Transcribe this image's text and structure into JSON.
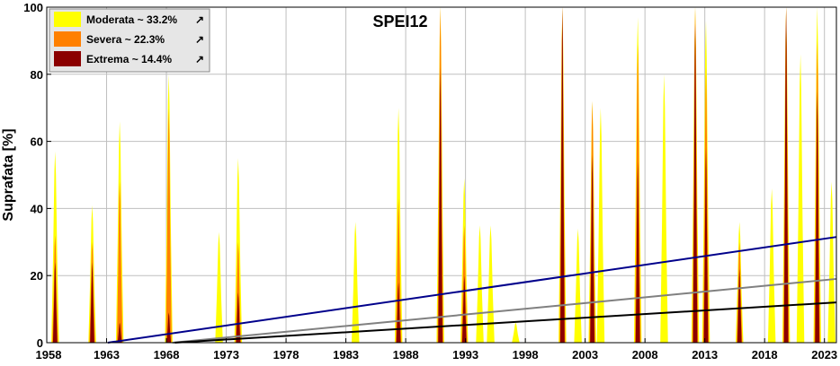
{
  "chart_data": {
    "type": "area",
    "title": "SPEI12",
    "xlabel": "",
    "ylabel": "Suprafata [%]",
    "xlim": [
      1958,
      2024
    ],
    "ylim": [
      0,
      100
    ],
    "x_ticks": [
      "1958",
      "1963",
      "1968",
      "1973",
      "1978",
      "1983",
      "1988",
      "1993",
      "1998",
      "2003",
      "2008",
      "2013",
      "2018",
      "2023"
    ],
    "y_ticks": [
      "0",
      "20",
      "40",
      "60",
      "80",
      "100"
    ],
    "grid": true,
    "legend_position": "top-left",
    "series": [
      {
        "name": "Moderata ~ 33.2%",
        "color": "#ffff00",
        "peaks": [
          [
            1958.7,
            57
          ],
          [
            1961.8,
            41
          ],
          [
            1964.1,
            66
          ],
          [
            1968.2,
            80
          ],
          [
            1972.4,
            33
          ],
          [
            1974.0,
            55
          ],
          [
            1983.8,
            36
          ],
          [
            1987.4,
            70
          ],
          [
            1990.9,
            100
          ],
          [
            1992.9,
            49
          ],
          [
            1994.2,
            35
          ],
          [
            1995.1,
            35
          ],
          [
            1997.2,
            6
          ],
          [
            2001.1,
            100
          ],
          [
            2002.4,
            34
          ],
          [
            2003.6,
            72
          ],
          [
            2004.3,
            70
          ],
          [
            2007.4,
            97
          ],
          [
            2009.6,
            80
          ],
          [
            2012.2,
            100
          ],
          [
            2013.1,
            96
          ],
          [
            2015.9,
            36
          ],
          [
            2018.6,
            46
          ],
          [
            2019.8,
            100
          ],
          [
            2021.0,
            86
          ],
          [
            2022.4,
            100
          ],
          [
            2023.6,
            48
          ]
        ]
      },
      {
        "name": "Severa ~ 22.3%",
        "color": "#ff8000",
        "peaks": [
          [
            1958.7,
            32
          ],
          [
            1961.8,
            30
          ],
          [
            1964.1,
            48
          ],
          [
            1968.2,
            70
          ],
          [
            1974.0,
            30
          ],
          [
            1987.4,
            43
          ],
          [
            1990.9,
            100
          ],
          [
            1992.9,
            35
          ],
          [
            2001.1,
            100
          ],
          [
            2003.6,
            72
          ],
          [
            2007.4,
            89
          ],
          [
            2012.2,
            100
          ],
          [
            2013.1,
            82
          ],
          [
            2015.9,
            30
          ],
          [
            2019.8,
            100
          ],
          [
            2022.4,
            90
          ]
        ]
      },
      {
        "name": "Extrema ~ 14.4%",
        "color": "#8b0000",
        "peaks": [
          [
            1958.7,
            24
          ],
          [
            1961.8,
            24
          ],
          [
            1964.1,
            6
          ],
          [
            1968.2,
            9
          ],
          [
            1974.0,
            15
          ],
          [
            1987.4,
            18
          ],
          [
            1990.9,
            82
          ],
          [
            1992.9,
            20
          ],
          [
            2001.1,
            100
          ],
          [
            2003.6,
            56
          ],
          [
            2007.4,
            54
          ],
          [
            2012.2,
            95
          ],
          [
            2013.1,
            58
          ],
          [
            2015.9,
            22
          ],
          [
            2019.8,
            100
          ],
          [
            2022.4,
            75
          ]
        ]
      }
    ],
    "trend_lines": [
      {
        "series": "Moderata",
        "color": "#00008b",
        "x": [
          1963.1,
          2024
        ],
        "y": [
          0,
          31.5
        ]
      },
      {
        "series": "Severa",
        "color": "#808080",
        "x": [
          1968.5,
          2024
        ],
        "y": [
          0,
          19
        ]
      },
      {
        "series": "Extrema",
        "color": "#000000",
        "x": [
          1968.7,
          2024
        ],
        "y": [
          0,
          12
        ]
      }
    ]
  },
  "legend": [
    {
      "label": "Moderata ~ 33.2%",
      "color": "#ffff00"
    },
    {
      "label": "Severa ~ 22.3%",
      "color": "#ff8000"
    },
    {
      "label": "Extrema ~ 14.4%",
      "color": "#8b0000"
    }
  ]
}
